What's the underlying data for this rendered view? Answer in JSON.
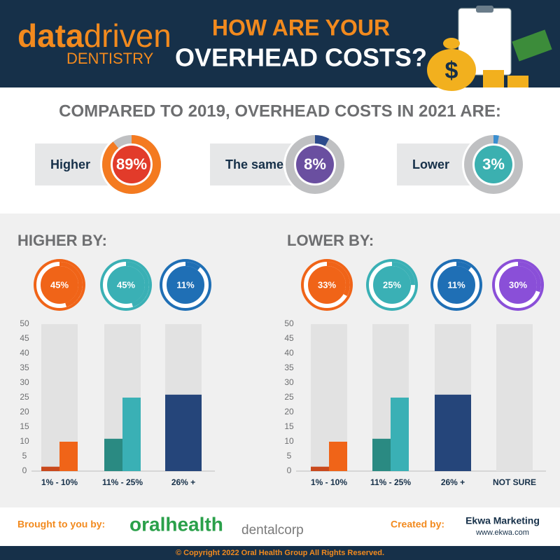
{
  "header": {
    "brand_a": "data",
    "brand_b": "driven",
    "brand_sub": "DENTISTRY",
    "title_line1": "HOW ARE YOUR",
    "title_line2": "OVERHEAD COSTS?"
  },
  "comparison": {
    "title": "COMPARED TO 2019, OVERHEAD COSTS IN 2021 ARE:",
    "items": [
      {
        "label": "Higher",
        "value": 89,
        "value_label": "89%",
        "color": "#f47a20",
        "inner": "#e23b2a"
      },
      {
        "label": "The same",
        "value": 8,
        "value_label": "8%",
        "color": "#2c4b8c",
        "inner": "#6a4fa0"
      },
      {
        "label": "Lower",
        "value": 3,
        "value_label": "3%",
        "color": "#3a8fd0",
        "inner": "#3bb0b0"
      }
    ]
  },
  "chart_data": [
    {
      "type": "bar",
      "title": "HIGHER BY:",
      "donuts": [
        {
          "value": 45,
          "value_label": "45%",
          "color": "#f06418"
        },
        {
          "value": 45,
          "value_label": "45%",
          "color": "#3ab0b5"
        },
        {
          "value": 11,
          "value_label": "11%",
          "color": "#1f6fb5"
        }
      ],
      "categories": [
        "1% - 10%",
        "11% - 25%",
        "26% +"
      ],
      "series": [
        {
          "values": [
            1.5,
            11,
            26
          ],
          "colors": [
            "#c9491c",
            "#2a8a82",
            "#25457a"
          ]
        },
        {
          "values": [
            10,
            25,
            null
          ],
          "colors": [
            "#f06418",
            "#3ab0b5",
            null
          ]
        }
      ],
      "ylim": [
        0,
        50
      ],
      "yticks": [
        0,
        5,
        10,
        15,
        20,
        25,
        30,
        35,
        40,
        45,
        50
      ]
    },
    {
      "type": "bar",
      "title": "LOWER BY:",
      "donuts": [
        {
          "value": 33,
          "value_label": "33%",
          "color": "#f06418"
        },
        {
          "value": 25,
          "value_label": "25%",
          "color": "#3ab0b5"
        },
        {
          "value": 11,
          "value_label": "11%",
          "color": "#1f6fb5"
        },
        {
          "value": 30,
          "value_label": "30%",
          "color": "#8a4fd8"
        }
      ],
      "categories": [
        "1% - 10%",
        "11% - 25%",
        "26% +",
        "NOT SURE"
      ],
      "series": [
        {
          "values": [
            1.5,
            11,
            26,
            null
          ],
          "colors": [
            "#c9491c",
            "#2a8a82",
            "#25457a",
            null
          ]
        },
        {
          "values": [
            10,
            25,
            null,
            null
          ],
          "colors": [
            "#f06418",
            "#3ab0b5",
            null,
            null
          ]
        }
      ],
      "ylim": [
        0,
        50
      ],
      "yticks": [
        0,
        5,
        10,
        15,
        20,
        25,
        30,
        35,
        40,
        45,
        50
      ]
    }
  ],
  "footer": {
    "brought": "Brought to you by:",
    "sponsor1": "oralhealth",
    "sponsor2": "dentalcorp",
    "created": "Created by:",
    "creator": "Ekwa Marketing",
    "creator_url": "www.ekwa.com",
    "copyright": "© Copyright 2022 Oral Health Group All Rights Reserved."
  }
}
